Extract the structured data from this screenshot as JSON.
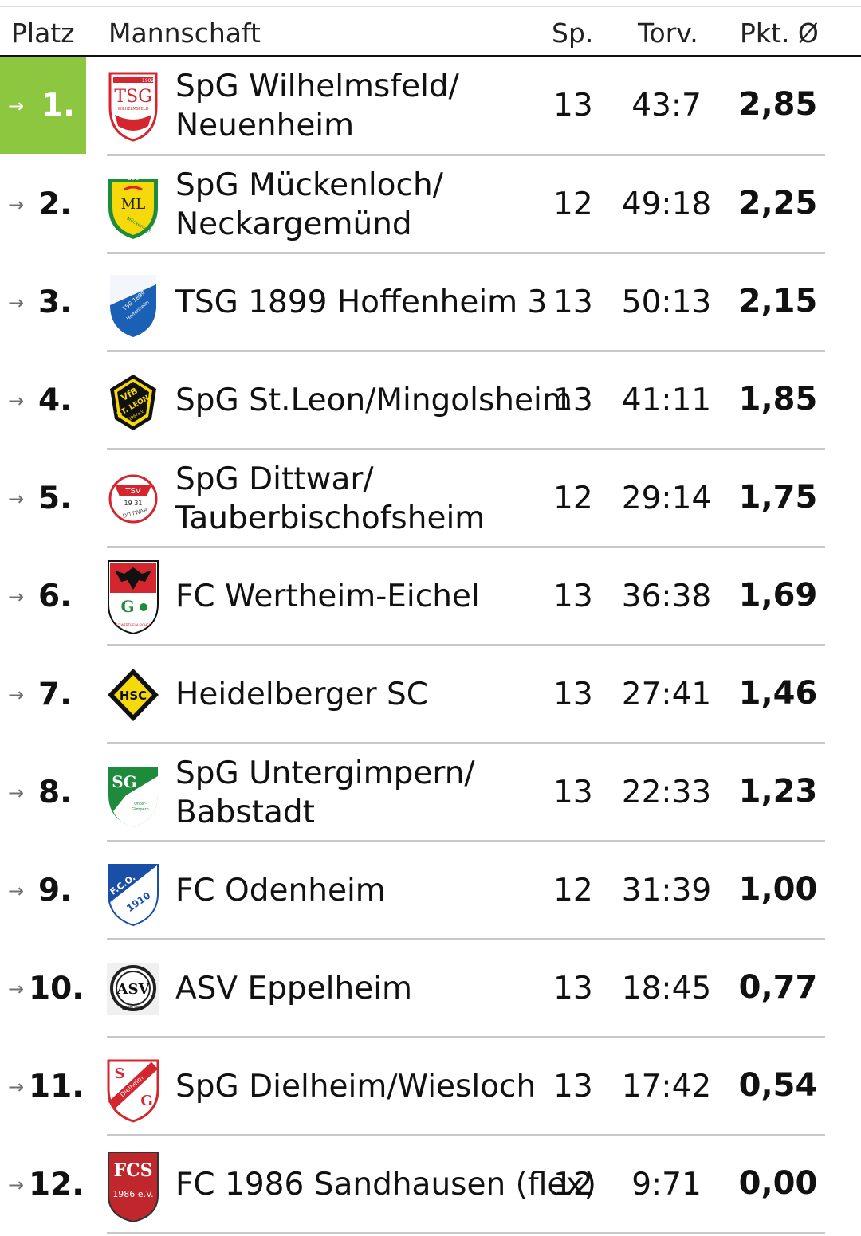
{
  "header": {
    "platz": "Platz",
    "mannschaft": "Mannschaft",
    "sp": "Sp.",
    "torv": "Torv.",
    "pkt": "Pkt. Ø"
  },
  "colors": {
    "highlight": "#8dc63f",
    "separator": "#c8c8c8"
  },
  "rows": [
    {
      "pos": "1.",
      "arrow": "→",
      "team1": "SpG Wilhelmsfeld/",
      "team2": "Neuenheim",
      "sp": "13",
      "torv": "43:7",
      "pkt": "2,85",
      "logo_text1": "1902",
      "logo_text2": "TSG",
      "logo_text3": "WILHELMSFELD"
    },
    {
      "pos": "2.",
      "arrow": "→",
      "team1": "SpG Mückenloch/",
      "team2": "Neckargemünd",
      "sp": "12",
      "torv": "49:18",
      "pkt": "2,25",
      "logo_text1": "BSC",
      "logo_text2": "ML",
      "logo_text3": "Mückenloch"
    },
    {
      "pos": "3.",
      "arrow": "→",
      "team1": "TSG 1899 Hoffenheim 3",
      "team2": "",
      "sp": "13",
      "torv": "50:13",
      "pkt": "2,15",
      "logo_text1": "TSG 1899",
      "logo_text2": "Hoffenheim",
      "logo_text3": ""
    },
    {
      "pos": "4.",
      "arrow": "→",
      "team1": "SpG St.Leon/Mingolsheim",
      "team2": "",
      "sp": "13",
      "torv": "41:11",
      "pkt": "1,85",
      "logo_text1": "VfB",
      "logo_text2": "ST. LEON",
      "logo_text3": "1967e.V."
    },
    {
      "pos": "5.",
      "arrow": "→",
      "team1": "SpG Dittwar/",
      "team2": "Tauberbischofsheim",
      "sp": "12",
      "torv": "29:14",
      "pkt": "1,75",
      "logo_text1": "TSV",
      "logo_text2": "19 31",
      "logo_text3": "DITTWAR"
    },
    {
      "pos": "6.",
      "arrow": "→",
      "team1": "FC Wertheim-Eichel",
      "team2": "",
      "sp": "13",
      "torv": "36:38",
      "pkt": "1,69",
      "logo_text1": "G",
      "logo_text2": "",
      "logo_text3": "FC WERTHEIM-EICHEL"
    },
    {
      "pos": "7.",
      "arrow": "→",
      "team1": "Heidelberger SC",
      "team2": "",
      "sp": "13",
      "torv": "27:41",
      "pkt": "1,46",
      "logo_text1": "HSC",
      "logo_text2": "",
      "logo_text3": ""
    },
    {
      "pos": "8.",
      "arrow": "→",
      "team1": "SpG Untergimpern/",
      "team2": "Babstadt",
      "sp": "13",
      "torv": "22:33",
      "pkt": "1,23",
      "logo_text1": "SG",
      "logo_text2": "Unter-",
      "logo_text3": "Gimpern"
    },
    {
      "pos": "9.",
      "arrow": "→",
      "team1": "FC Odenheim",
      "team2": "",
      "sp": "12",
      "torv": "31:39",
      "pkt": "1,00",
      "logo_text1": "F.C.O.",
      "logo_text2": "1910",
      "logo_text3": ""
    },
    {
      "pos": "10.",
      "arrow": "→",
      "team1": "ASV Eppelheim",
      "team2": "",
      "sp": "13",
      "torv": "18:45",
      "pkt": "0,77",
      "logo_text1": "ASV",
      "logo_text2": "EPPELHEIM",
      "logo_text3": ""
    },
    {
      "pos": "11.",
      "arrow": "→",
      "team1": "SpG Dielheim/Wiesloch",
      "team2": "",
      "sp": "13",
      "torv": "17:42",
      "pkt": "0,54",
      "logo_text1": "S",
      "logo_text2": "Dielheim",
      "logo_text3": "G"
    },
    {
      "pos": "12.",
      "arrow": "→",
      "team1": "FC 1986 Sandhausen (flex)",
      "team2": "",
      "sp": "12",
      "torv": "9:71",
      "pkt": "0,00",
      "logo_text1": "FCS",
      "logo_text2": "1986 e.V.",
      "logo_text3": ""
    }
  ]
}
